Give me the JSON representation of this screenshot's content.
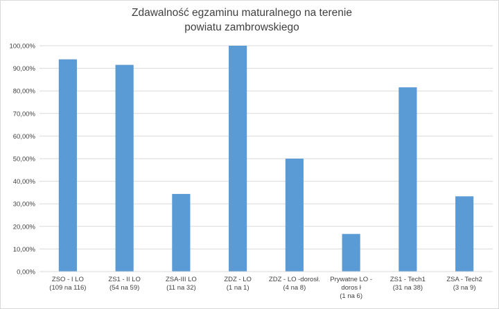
{
  "chart_data": {
    "type": "bar",
    "title_lines": [
      "Zdawalność egzaminu maturalnego na terenie",
      "powiatu zambrowskiego"
    ],
    "categories": [
      [
        "ZSO - I LO",
        "(109 na 116)"
      ],
      [
        "ZS1 - II LO",
        "(54 na 59)"
      ],
      [
        "ZSA-III LO",
        "(11 na 32)"
      ],
      [
        "ZDZ - LO",
        "(1 na 1)"
      ],
      [
        "ZDZ - LO -dorosł.",
        "(4 na 8)"
      ],
      [
        "Prywatne LO -",
        "doros ł",
        "(1 na 6)"
      ],
      [
        "ZS1 - Tech1",
        "(31 na 38)"
      ],
      [
        "ZSA - Tech2",
        "(3 na 9)"
      ]
    ],
    "values": [
      93.97,
      91.53,
      34.38,
      100.0,
      50.0,
      16.67,
      81.58,
      33.33
    ],
    "y_ticks": [
      "0,00%",
      "10,00%",
      "20,00%",
      "30,00%",
      "40,00%",
      "50,00%",
      "60,00%",
      "70,00%",
      "80,00%",
      "90,00%",
      "100,00%"
    ],
    "ylim": [
      0,
      100
    ],
    "grid": true,
    "legend": "none",
    "bar_color": "#5b9bd5",
    "grid_color": "#d9d9d9"
  }
}
